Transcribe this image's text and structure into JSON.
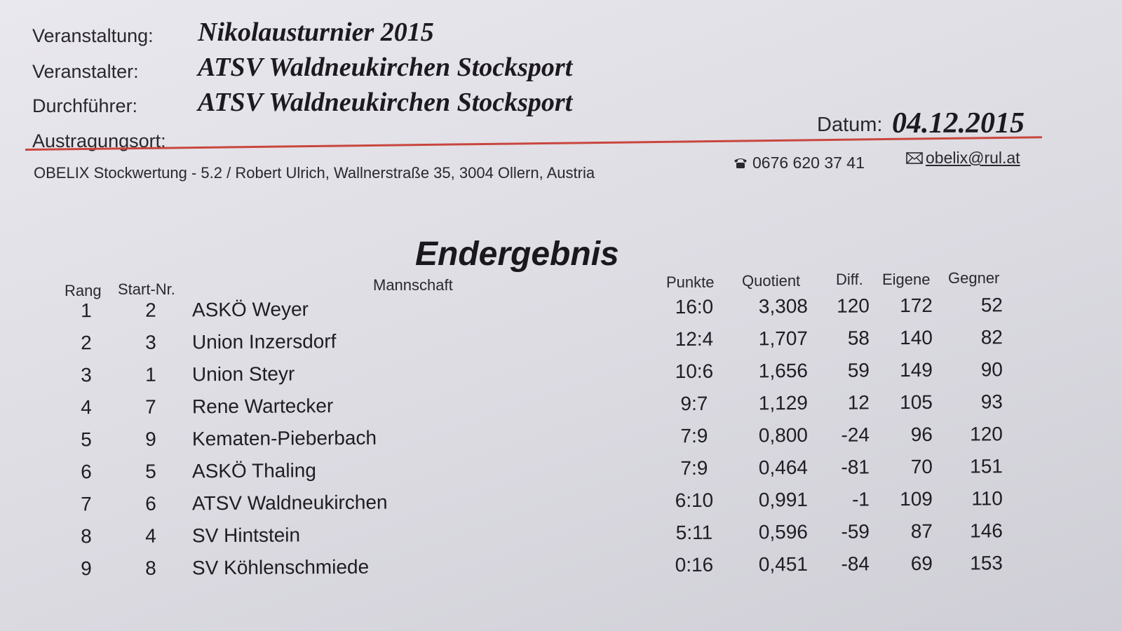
{
  "header": {
    "event_label": "Veranstaltung:",
    "event_value": "Nikolausturnier 2015",
    "organizer_label": "Veranstalter:",
    "organizer_value": "ATSV Waldneukirchen Stocksport",
    "executor_label": "Durchführer:",
    "executor_value": "ATSV Waldneukirchen Stocksport",
    "venue_label": "Austragungsort:",
    "date_label": "Datum:",
    "date_value": "04.12.2015"
  },
  "footer": {
    "software_line": "OBELIX Stockwertung - 5.2 / Robert Ulrich, Wallnerstraße 35, 3004 Ollern, Austria",
    "phone_icon": "telephone-icon",
    "phone": "0676 620 37 41",
    "email_icon": "envelope-icon",
    "email": "obelix@rul.at"
  },
  "results": {
    "title": "Endergebnis",
    "columns": {
      "rang": "Rang",
      "start_nr": "Start-Nr.",
      "team": "Mannschaft",
      "punkte": "Punkte",
      "quotient": "Quotient",
      "diff": "Diff.",
      "eigene": "Eigene",
      "gegner": "Gegner"
    },
    "rows": [
      {
        "rang": "1",
        "start_nr": "2",
        "team": "ASKÖ Weyer",
        "punkte": "16:0",
        "quotient": "3,308",
        "diff": "120",
        "eigene": "172",
        "gegner": "52"
      },
      {
        "rang": "2",
        "start_nr": "3",
        "team": "Union Inzersdorf",
        "punkte": "12:4",
        "quotient": "1,707",
        "diff": "58",
        "eigene": "140",
        "gegner": "82"
      },
      {
        "rang": "3",
        "start_nr": "1",
        "team": "Union Steyr",
        "punkte": "10:6",
        "quotient": "1,656",
        "diff": "59",
        "eigene": "149",
        "gegner": "90"
      },
      {
        "rang": "4",
        "start_nr": "7",
        "team": "Rene Wartecker",
        "punkte": "9:7",
        "quotient": "1,129",
        "diff": "12",
        "eigene": "105",
        "gegner": "93"
      },
      {
        "rang": "5",
        "start_nr": "9",
        "team": "Kematen-Pieberbach",
        "punkte": "7:9",
        "quotient": "0,800",
        "diff": "-24",
        "eigene": "96",
        "gegner": "120"
      },
      {
        "rang": "6",
        "start_nr": "5",
        "team": "ASKÖ Thaling",
        "punkte": "7:9",
        "quotient": "0,464",
        "diff": "-81",
        "eigene": "70",
        "gegner": "151"
      },
      {
        "rang": "7",
        "start_nr": "6",
        "team": "ATSV Waldneukirchen",
        "punkte": "6:10",
        "quotient": "0,991",
        "diff": "-1",
        "eigene": "109",
        "gegner": "110"
      },
      {
        "rang": "8",
        "start_nr": "4",
        "team": "SV Hintstein",
        "punkte": "5:11",
        "quotient": "0,596",
        "diff": "-59",
        "eigene": "87",
        "gegner": "146"
      },
      {
        "rang": "9",
        "start_nr": "8",
        "team": "SV Köhlenschmiede",
        "punkte": "0:16",
        "quotient": "0,451",
        "diff": "-84",
        "eigene": "69",
        "gegner": "153"
      }
    ]
  }
}
